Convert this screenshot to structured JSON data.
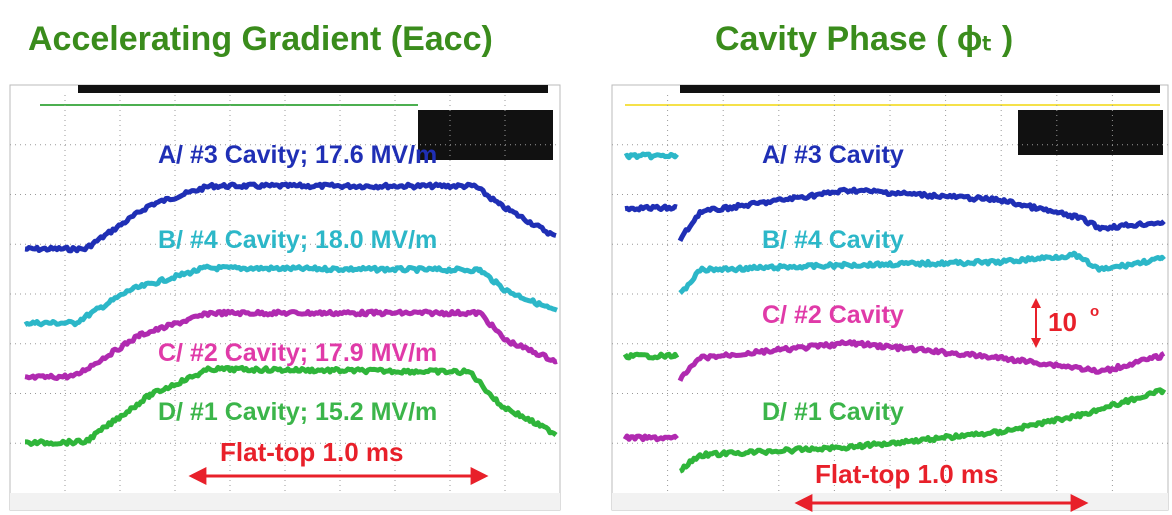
{
  "left_panel": {
    "title": "Accelerating Gradient (Eacc)",
    "traces": [
      "A/ #3 Cavity; 17.6 MV/m",
      "B/ #4 Cavity; 18.0 MV/m",
      "C/ #2 Cavity; 17.9 MV/m",
      "D/ #1 Cavity; 15.2 MV/m"
    ],
    "annotation": "Flat-top 1.0 ms"
  },
  "right_panel": {
    "title": "Cavity  Phase ( ϕₜ )",
    "traces": [
      "A/ #3 Cavity",
      "B/ #4 Cavity",
      "C/ #2 Cavity",
      "D/ #1 Cavity"
    ],
    "scale_label": "10",
    "scale_unit": "o",
    "annotation": "Flat-top 1.0 ms"
  }
}
